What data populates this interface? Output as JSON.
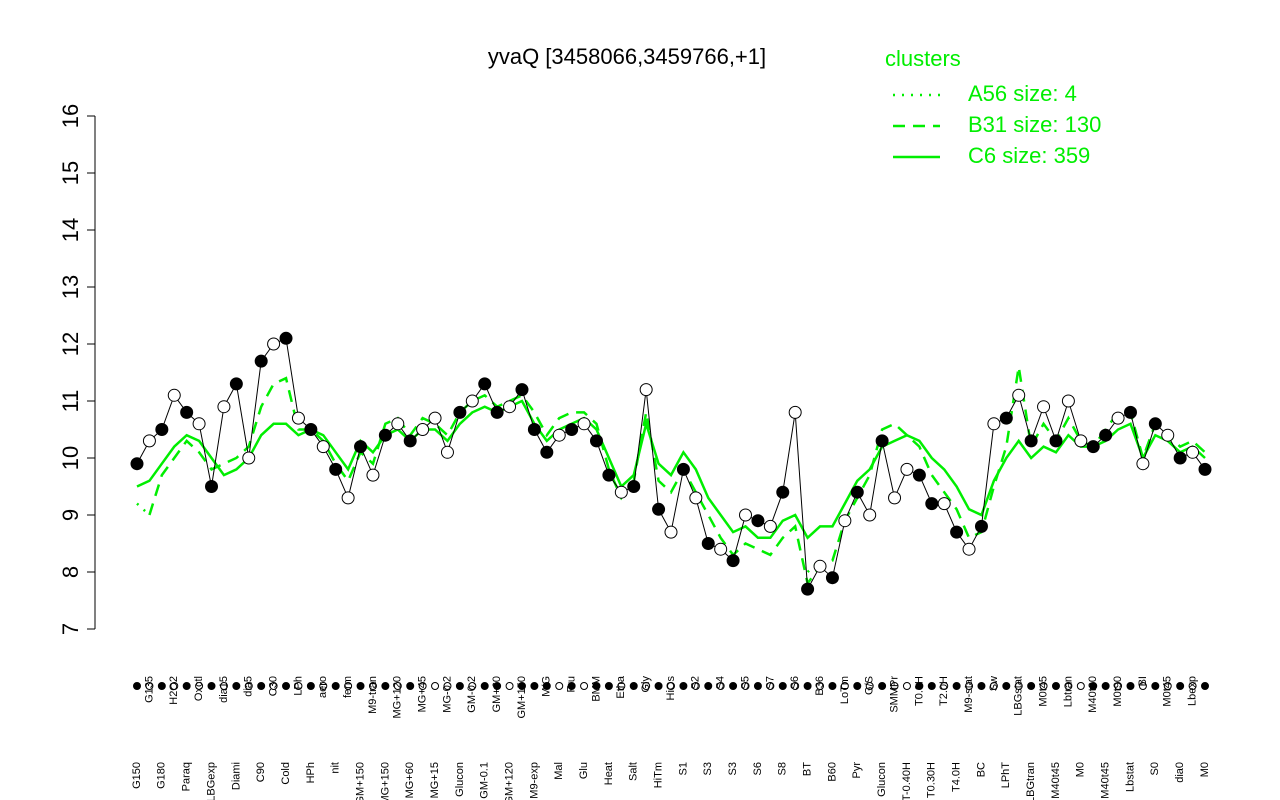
{
  "chart_data": {
    "type": "line",
    "title": "yvaQ [3458066,3459766,+1]",
    "legend_title": "clusters",
    "legend_position": "top-right",
    "ylim": [
      7,
      16
    ],
    "yticks": [
      7,
      8,
      9,
      10,
      11,
      12,
      13,
      14,
      15,
      16
    ],
    "point_color": "#000000",
    "categories": [
      "G150",
      "G135",
      "G180",
      "H2O2",
      "Paraq",
      "Oxctl",
      "LBGexp",
      "dia15",
      "Diami",
      "dia5",
      "C90",
      "C30",
      "Cold",
      "LPh",
      "HPh",
      "aero",
      "nit",
      "ferm",
      "GM+150",
      "M9-tran",
      "MG+150",
      "MG+120",
      "MG+60",
      "MG+45",
      "MG+15",
      "MG-0.2",
      "Glucon",
      "GM-0.2",
      "GM-0.1",
      "GM+60",
      "GM+120",
      "GM+150",
      "M9-exp",
      "M/G",
      "Mal",
      "Fru",
      "Glu",
      "BMM",
      "Heat",
      "Etha",
      "Salt",
      "Gly",
      "HiTm",
      "HiOs",
      "S1",
      "S2",
      "S3",
      "S4",
      "S3",
      "S5",
      "S6",
      "S7",
      "S8",
      "S6",
      "BT",
      "B36",
      "B60",
      "LoTm",
      "Pyr",
      "G/S",
      "Glucon",
      "SMMPr",
      "T-0.40H",
      "T0.0H",
      "T0.30H",
      "T2.0H",
      "T4.0H",
      "M9-stat",
      "BC",
      "Sw",
      "LPhT",
      "LBGstat",
      "LBGtran",
      "M0t45",
      "M40t45",
      "Lbtran",
      "M0",
      "M40t90",
      "M40t45",
      "M0t90",
      "Lbstat",
      "BI",
      "S0",
      "M0t45",
      "dia0",
      "Lbexp",
      "M0"
    ],
    "values": [
      9.9,
      10.3,
      10.5,
      11.1,
      10.8,
      10.6,
      9.5,
      10.9,
      11.3,
      10.0,
      11.7,
      12.0,
      12.1,
      10.7,
      10.5,
      10.2,
      9.8,
      9.3,
      10.2,
      9.7,
      10.4,
      10.6,
      10.3,
      10.5,
      10.7,
      10.1,
      10.8,
      11.0,
      11.3,
      10.8,
      10.9,
      11.2,
      10.5,
      10.1,
      10.4,
      10.5,
      10.6,
      10.3,
      9.7,
      9.4,
      9.5,
      11.2,
      9.1,
      8.7,
      9.8,
      9.3,
      8.5,
      8.4,
      8.2,
      9.0,
      8.9,
      8.8,
      9.4,
      10.8,
      7.7,
      8.1,
      7.9,
      8.9,
      9.4,
      9.0,
      10.3,
      9.3,
      9.8,
      9.7,
      9.2,
      9.2,
      8.7,
      8.4,
      8.8,
      10.6,
      10.7,
      11.1,
      10.3,
      10.9,
      10.3,
      11.0,
      10.3,
      10.2,
      10.4,
      10.7,
      10.8,
      9.9,
      10.6,
      10.4,
      10.0,
      10.1,
      9.8
    ],
    "point_filled": [
      true,
      false,
      true,
      false,
      true,
      false,
      true,
      false,
      true,
      false,
      true,
      false,
      true,
      false,
      true,
      false,
      true,
      false,
      true,
      false,
      true,
      false,
      true,
      false,
      false,
      false,
      true,
      false,
      true,
      true,
      false,
      true,
      true,
      true,
      false,
      true,
      false,
      true,
      true,
      false,
      true,
      false,
      true,
      false,
      true,
      false,
      true,
      false,
      true,
      false,
      true,
      false,
      true,
      false,
      true,
      false,
      true,
      false,
      true,
      false,
      true,
      false,
      false,
      true,
      true,
      false,
      true,
      false,
      true,
      false,
      true,
      false,
      true,
      false,
      true,
      false,
      false,
      true,
      true,
      false,
      true,
      false,
      true,
      false,
      true,
      false,
      true
    ],
    "series": [
      {
        "name": "A56 size: 4",
        "color": "#00ee00",
        "style": "dotted",
        "values": [
          9.2,
          9.0,
          null,
          null,
          null,
          null,
          null,
          null,
          null,
          null,
          null,
          null,
          null,
          null,
          null,
          null,
          null,
          null,
          null,
          null,
          null,
          null,
          null,
          null,
          null,
          null,
          null,
          null,
          null,
          null,
          null,
          null,
          null,
          null,
          null,
          null,
          null,
          null,
          null,
          null,
          null,
          null,
          null,
          null,
          null,
          null,
          null,
          null,
          null,
          null,
          null,
          null,
          null,
          null,
          8.0,
          8.2,
          null,
          null,
          null,
          null,
          null,
          null,
          null,
          null,
          null,
          null,
          null,
          null,
          null,
          null,
          null,
          null,
          null,
          null,
          null,
          null,
          null,
          null,
          null,
          null,
          null,
          null,
          null,
          null,
          null,
          null,
          null
        ]
      },
      {
        "name": "B31 size: 130",
        "color": "#00ee00",
        "style": "dashed",
        "values": [
          null,
          9.0,
          9.7,
          10.0,
          10.3,
          10.1,
          9.8,
          9.9,
          10.0,
          10.2,
          10.9,
          11.3,
          11.4,
          10.5,
          10.5,
          10.3,
          9.9,
          9.6,
          10.1,
          9.9,
          10.6,
          10.7,
          10.4,
          10.7,
          10.6,
          10.4,
          10.8,
          11.0,
          11.1,
          10.9,
          11.0,
          11.1,
          10.8,
          10.4,
          10.7,
          10.8,
          10.8,
          10.6,
          9.8,
          9.3,
          9.6,
          10.8,
          9.6,
          9.4,
          9.8,
          9.4,
          9.0,
          8.6,
          8.3,
          8.5,
          8.4,
          8.3,
          8.6,
          8.8,
          7.8,
          8.1,
          8.2,
          8.9,
          9.3,
          9.7,
          10.5,
          10.6,
          10.4,
          10.2,
          9.7,
          9.4,
          9.1,
          8.6,
          8.7,
          9.5,
          10.2,
          11.6,
          10.2,
          10.6,
          10.3,
          10.7,
          10.3,
          10.2,
          10.5,
          10.8,
          10.8,
          10.0,
          10.6,
          10.4,
          10.2,
          10.3,
          10.1
        ]
      },
      {
        "name": "C6 size: 359",
        "color": "#00ee00",
        "style": "solid",
        "values": [
          9.5,
          9.6,
          9.9,
          10.2,
          10.4,
          10.3,
          10.0,
          9.7,
          9.8,
          10.0,
          10.4,
          10.6,
          10.6,
          10.4,
          10.5,
          10.4,
          10.1,
          9.8,
          10.3,
          10.1,
          10.4,
          10.5,
          10.3,
          10.5,
          10.5,
          10.3,
          10.6,
          10.8,
          10.9,
          10.8,
          10.9,
          11.0,
          10.6,
          10.3,
          10.5,
          10.6,
          10.7,
          10.5,
          10.0,
          9.5,
          9.7,
          10.6,
          9.9,
          9.7,
          10.1,
          9.8,
          9.3,
          9.0,
          8.7,
          8.8,
          8.6,
          8.6,
          8.9,
          9.0,
          8.6,
          8.8,
          8.8,
          9.2,
          9.6,
          9.8,
          10.2,
          10.3,
          10.4,
          10.3,
          10.0,
          9.8,
          9.5,
          9.1,
          9.0,
          9.6,
          10.0,
          10.3,
          10.0,
          10.2,
          10.1,
          10.4,
          10.2,
          10.2,
          10.3,
          10.5,
          10.6,
          10.0,
          10.4,
          10.3,
          10.1,
          10.2,
          10.0
        ]
      }
    ]
  }
}
